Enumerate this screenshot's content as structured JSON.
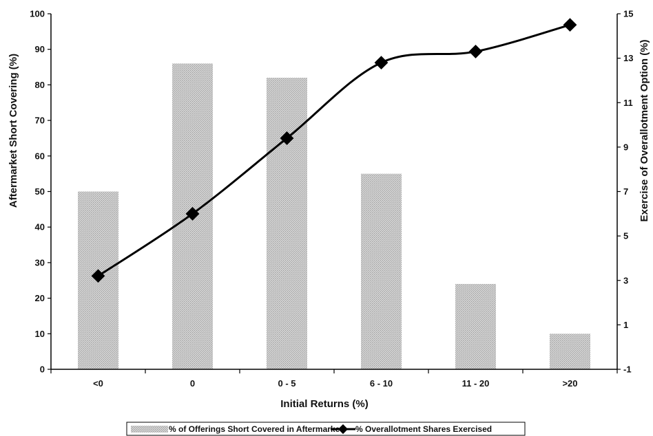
{
  "chart_data": {
    "type": "bar",
    "categories": [
      "<0",
      "0",
      "0 - 5",
      "6 - 10",
      "11 - 20",
      ">20"
    ],
    "xlabel": "Initial Returns (%)",
    "ylabel": "Aftermarket Short Covering (%)",
    "y2label": "Exercise of Overallotment Option (%)",
    "ylim": [
      0,
      100
    ],
    "y2lim": [
      -1,
      15
    ],
    "yticks": [
      0,
      10,
      20,
      30,
      40,
      50,
      60,
      70,
      80,
      90,
      100
    ],
    "y2ticks": [
      -1,
      1,
      3,
      5,
      7,
      9,
      11,
      13,
      15
    ],
    "legend_position": "bottom",
    "series": [
      {
        "name": "% of Offerings Short Covered in Aftermarket",
        "type": "bar",
        "axis": "left",
        "values": [
          50,
          86,
          82,
          55,
          24,
          10
        ],
        "color": "#c8c8c8"
      },
      {
        "name": "% Overallotment Shares Exercised",
        "type": "line",
        "axis": "right",
        "values": [
          3.2,
          6.0,
          9.4,
          12.8,
          13.3,
          14.5
        ],
        "color": "#000000"
      }
    ]
  }
}
